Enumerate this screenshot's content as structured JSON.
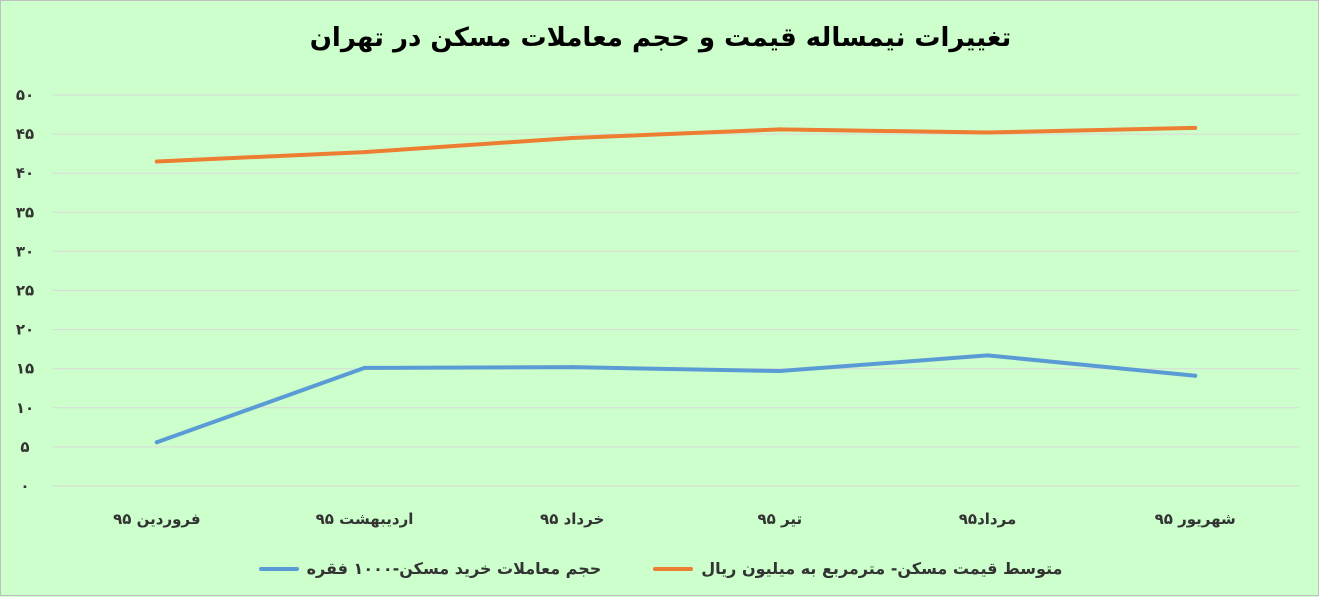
{
  "chart_data": {
    "type": "line",
    "title": "تغییرات نیمساله قیمت و حجم معاملات مسکن در تهران",
    "categories": [
      "فروردین ۹۵",
      "اردیبهشت ۹۵",
      "خرداد ۹۵",
      "تیر ۹۵",
      "مرداد۹۵",
      "شهریور ۹۵"
    ],
    "y_tick_labels": [
      "۰",
      "۵",
      "۱۰",
      "۱۵",
      "۲۰",
      "۲۵",
      "۳۰",
      "۳۵",
      "۴۰",
      "۴۵",
      "۵۰"
    ],
    "ylim": [
      0,
      50
    ],
    "grid": true,
    "legend_position": "bottom",
    "series": [
      {
        "name": "متوسط قیمت مسکن- مترمربع  به میلیون ریال",
        "color": "#ed7d31",
        "values": [
          41.5,
          42.7,
          44.5,
          45.6,
          45.2,
          45.8
        ]
      },
      {
        "name": "حجم معاملات خرید مسکن-۱۰۰۰ فقره",
        "color": "#5b9bd5",
        "values": [
          5.6,
          15.1,
          15.2,
          14.7,
          16.7,
          14.1
        ]
      }
    ]
  }
}
